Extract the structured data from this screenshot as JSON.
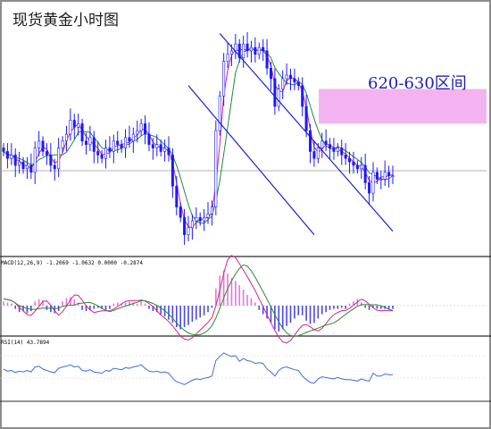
{
  "chart_title": "现货黄金小时图",
  "zone_label": "620-630区间",
  "macd_label": "MACD(12,26,9) -1.2069 -1.0632 0.0000 -0.2874",
  "rsi_label": "RSI(14) 43.7894",
  "colors": {
    "up_candle": "#1a1aff",
    "down_candle": "#1a1aff",
    "ma_fast": "#e01f8a",
    "ma_slow": "#1e8a3a",
    "zone_fill": "#f3b3f0",
    "channel": "#1f1fd0",
    "macd_hist_pos": "#e675d8",
    "macd_hist_neg": "#4a4ae0",
    "macd_signal": "#2a8a2a",
    "rsi_line": "#3a6fd8",
    "frame": "#8c8c8c"
  },
  "chart_data": [
    {
      "type": "candlestick",
      "title": "现货黄金小时图",
      "annotation": "620-630区间",
      "x": [
        1,
        2,
        3,
        4,
        5,
        6,
        7,
        8,
        9,
        10,
        11,
        12,
        13,
        14,
        15,
        16,
        17,
        18,
        19,
        20,
        21,
        22,
        23,
        24,
        25,
        26,
        27,
        28,
        29,
        30,
        31,
        32,
        33,
        34,
        35,
        36,
        37,
        38,
        39,
        40,
        41,
        42,
        43,
        44,
        45,
        46,
        47,
        48,
        49,
        50,
        51,
        52,
        53,
        54,
        55,
        56,
        57,
        58,
        59,
        60,
        61,
        62,
        63,
        64,
        65,
        66,
        67,
        68,
        69,
        70,
        71,
        72,
        73,
        74,
        75,
        76,
        77,
        78,
        79,
        80,
        81,
        82,
        83,
        84,
        85,
        86,
        87,
        88,
        89,
        90,
        91,
        92,
        93,
        94,
        95,
        96,
        97,
        98,
        99,
        100
      ],
      "close": [
        612,
        610,
        611,
        608,
        609,
        607,
        608,
        606,
        613,
        615,
        612,
        611,
        608,
        607,
        613,
        615,
        617,
        621,
        619,
        620,
        615,
        614,
        616,
        612,
        611,
        610,
        613,
        612,
        615,
        614,
        613,
        616,
        615,
        617,
        618,
        620,
        617,
        614,
        613,
        614,
        612,
        613,
        611,
        602,
        596,
        593,
        588,
        590,
        592,
        593,
        592,
        593,
        594,
        596,
        618,
        628,
        638,
        640,
        641,
        643,
        639,
        643,
        641,
        642,
        640,
        642,
        641,
        636,
        633,
        625,
        630,
        633,
        634,
        633,
        632,
        631,
        625,
        618,
        612,
        610,
        613,
        615,
        614,
        613,
        612,
        613,
        611,
        610,
        609,
        608,
        607,
        608,
        603,
        600,
        606,
        604,
        604,
        606,
        605,
        605
      ],
      "zone_range": [
        620,
        630
      ],
      "ylim": [
        583,
        650
      ],
      "channel_upper": [
        [
          56,
          646
        ],
        [
          100,
          589
        ]
      ],
      "channel_lower": [
        [
          48,
          631
        ],
        [
          80,
          588
        ]
      ]
    },
    {
      "type": "histogram",
      "title": "MACD(12,26,9) -1.2069 -1.0632 0.0000 -0.2874",
      "indicator": "MACD",
      "params": [
        12,
        26,
        9
      ],
      "readout": [
        -1.2069,
        -1.0632,
        0.0,
        -0.2874
      ],
      "histogram": [
        0.4,
        0.3,
        0.2,
        -0.3,
        -0.6,
        -0.5,
        -0.7,
        -0.5,
        0.4,
        0.6,
        0.5,
        -0.4,
        -0.6,
        -0.7,
        -0.5,
        0.4,
        0.7,
        0.8,
        0.6,
        0.3,
        -0.4,
        -0.5,
        -0.4,
        -0.3,
        -0.2,
        -0.3,
        -0.4,
        -0.3,
        0.2,
        0.3,
        0.2,
        0.3,
        0.4,
        0.3,
        0.2,
        0.4,
        0.2,
        -0.3,
        -0.5,
        -0.6,
        -0.8,
        -1.0,
        -1.3,
        -1.6,
        -2.0,
        -2.2,
        -2.0,
        -1.8,
        -1.5,
        -1.3,
        -1.1,
        -0.9,
        -0.6,
        -0.2,
        1.6,
        2.8,
        3.3,
        3.0,
        2.6,
        2.3,
        1.9,
        1.5,
        1.0,
        0.7,
        0.3,
        -0.4,
        -0.8,
        -1.2,
        -1.6,
        -2.2,
        -2.4,
        -2.2,
        -1.9,
        -1.6,
        -1.2,
        -0.9,
        -0.9,
        -1.4,
        -1.7,
        -1.6,
        -1.2,
        -0.8,
        -0.6,
        -0.4,
        -0.3,
        -0.3,
        -0.2,
        -0.3,
        0.2,
        0.4,
        0.6,
        0.3,
        -0.2,
        -0.4,
        -0.2,
        -0.3,
        -0.3,
        -0.3,
        -0.3,
        -0.3
      ]
    },
    {
      "type": "line",
      "title": "RSI(14) 43.7894",
      "indicator": "RSI",
      "period": 14,
      "readout": 43.7894,
      "values": [
        52,
        49,
        50,
        47,
        49,
        48,
        50,
        48,
        55,
        56,
        52,
        50,
        48,
        47,
        53,
        55,
        56,
        58,
        55,
        56,
        50,
        49,
        51,
        48,
        47,
        46,
        50,
        49,
        53,
        52,
        51,
        54,
        53,
        55,
        56,
        58,
        53,
        49,
        48,
        49,
        47,
        48,
        46,
        39,
        34,
        32,
        30,
        33,
        36,
        38,
        37,
        39,
        40,
        42,
        64,
        70,
        75,
        72,
        70,
        71,
        63,
        67,
        64,
        63,
        60,
        61,
        60,
        52,
        48,
        42,
        50,
        54,
        55,
        53,
        51,
        50,
        42,
        37,
        33,
        32,
        38,
        41,
        40,
        39,
        38,
        40,
        38,
        37,
        37,
        36,
        35,
        38,
        36,
        35,
        46,
        42,
        42,
        45,
        44,
        44
      ]
    }
  ]
}
